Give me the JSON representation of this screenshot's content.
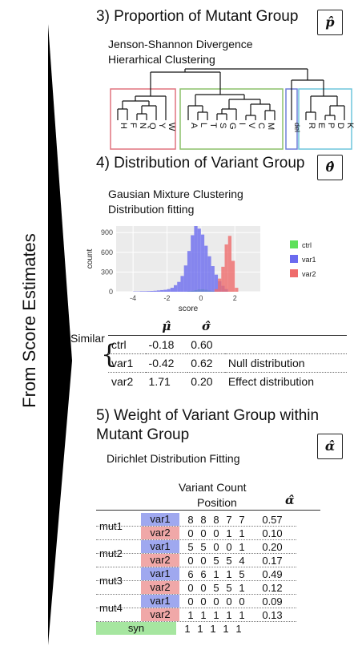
{
  "side_label": "From Score Estimates",
  "section3": {
    "title": "3) Proportion of Mutant Group",
    "symbol": "p̂",
    "lines": [
      "Jenson-Shannon Divergence",
      "Hierarhical Clustering"
    ],
    "group1_leaves": [
      "H",
      "F",
      "N",
      "Q",
      "Y",
      "W"
    ],
    "group2_leaves": [
      "A",
      "L",
      "T",
      "S",
      "G",
      "I",
      "V",
      "C",
      "M"
    ],
    "group3_leaves": [
      "del"
    ],
    "group4_leaves": [
      "R",
      "E",
      "P",
      "D",
      "K"
    ],
    "colors": {
      "g1": "#e0737f",
      "g2": "#8cc06a",
      "g3": "#6f7fd8",
      "g4": "#6ec6dc"
    }
  },
  "section4": {
    "title": "4) Distribution of Variant Group",
    "symbol": "θ̂",
    "lines": [
      "Gausian Mixture Clustering",
      "Distribution fitting"
    ],
    "similar_label": "Similar",
    "table_headers": [
      "",
      "μ̂",
      "σ̂",
      ""
    ],
    "table_rows": [
      {
        "name": "ctrl",
        "mu": "-0.18",
        "sigma": "0.60",
        "note": ""
      },
      {
        "name": "var1",
        "mu": "-0.42",
        "sigma": "0.62",
        "note": "Null distribution"
      },
      {
        "name": "var2",
        "mu": "1.71",
        "sigma": "0.20",
        "note": "Effect distribution"
      }
    ]
  },
  "chart_data": {
    "type": "bar",
    "xlabel": "score",
    "ylabel": "count",
    "xlim": [
      -5,
      3.5
    ],
    "ylim": [
      0,
      1000
    ],
    "x_ticks": [
      -4,
      -2,
      0,
      2
    ],
    "y_ticks": [
      0,
      300,
      600,
      900
    ],
    "legend_position": "right",
    "series": [
      {
        "name": "ctrl",
        "color": "#5ee05a",
        "x": [
          -0.7,
          -0.5,
          -0.3,
          -0.1,
          0.1,
          0.3,
          0.5,
          0.7
        ],
        "values": [
          8,
          15,
          25,
          35,
          38,
          30,
          18,
          10
        ]
      },
      {
        "name": "var1",
        "color": "#6b6bef",
        "x": [
          -3.9,
          -3.7,
          -3.5,
          -3.3,
          -3.1,
          -2.9,
          -2.7,
          -2.5,
          -2.3,
          -2.1,
          -1.9,
          -1.7,
          -1.5,
          -1.3,
          -1.1,
          -0.9,
          -0.7,
          -0.5,
          -0.3,
          -0.1,
          0.1,
          0.3,
          0.5,
          0.7,
          0.9,
          1.1,
          1.3,
          1.5
        ],
        "values": [
          5,
          5,
          8,
          8,
          10,
          12,
          15,
          20,
          25,
          30,
          40,
          60,
          100,
          150,
          240,
          400,
          620,
          860,
          1000,
          960,
          870,
          700,
          540,
          390,
          260,
          160,
          90,
          40
        ]
      },
      {
        "name": "var2",
        "color": "#ef6b6b",
        "x": [
          0.9,
          1.1,
          1.3,
          1.5,
          1.7,
          1.9,
          2.1
        ],
        "values": [
          40,
          200,
          380,
          720,
          850,
          470,
          60
        ]
      }
    ]
  },
  "section5": {
    "title_line1": "5) Weight of Variant Group within",
    "title_line2": "Mutant Group",
    "symbol": "α̂",
    "subtitle": "Dirichlet Distribution Fitting",
    "count_header": "Variant Count",
    "position_header": "Position",
    "alpha_header": "α̂",
    "colors": {
      "var1": "#9fa8ef",
      "var2": "#f0a8a8",
      "syn": "#a6e6a0"
    },
    "rows": [
      {
        "mut": "mut1",
        "group": "var1",
        "counts": [
          "8",
          "8",
          "8",
          "7",
          "7"
        ],
        "alpha": "0.57"
      },
      {
        "mut": "",
        "group": "var2",
        "counts": [
          "0",
          "0",
          "0",
          "1",
          "1"
        ],
        "alpha": "0.10"
      },
      {
        "mut": "mut2",
        "group": "var1",
        "counts": [
          "5",
          "5",
          "0",
          "0",
          "1"
        ],
        "alpha": "0.20"
      },
      {
        "mut": "",
        "group": "var2",
        "counts": [
          "0",
          "0",
          "5",
          "5",
          "4"
        ],
        "alpha": "0.17"
      },
      {
        "mut": "mut3",
        "group": "var1",
        "counts": [
          "6",
          "6",
          "1",
          "1",
          "5"
        ],
        "alpha": "0.49"
      },
      {
        "mut": "",
        "group": "var2",
        "counts": [
          "0",
          "0",
          "5",
          "5",
          "1"
        ],
        "alpha": "0.12"
      },
      {
        "mut": "mut4",
        "group": "var1",
        "counts": [
          "0",
          "0",
          "0",
          "0",
          "0"
        ],
        "alpha": "0.09"
      },
      {
        "mut": "",
        "group": "var2",
        "counts": [
          "1",
          "1",
          "1",
          "1",
          "1"
        ],
        "alpha": "0.13"
      },
      {
        "mut": "",
        "group": "syn",
        "counts": [
          "1",
          "1",
          "1",
          "1",
          "1"
        ],
        "alpha": ""
      }
    ]
  }
}
